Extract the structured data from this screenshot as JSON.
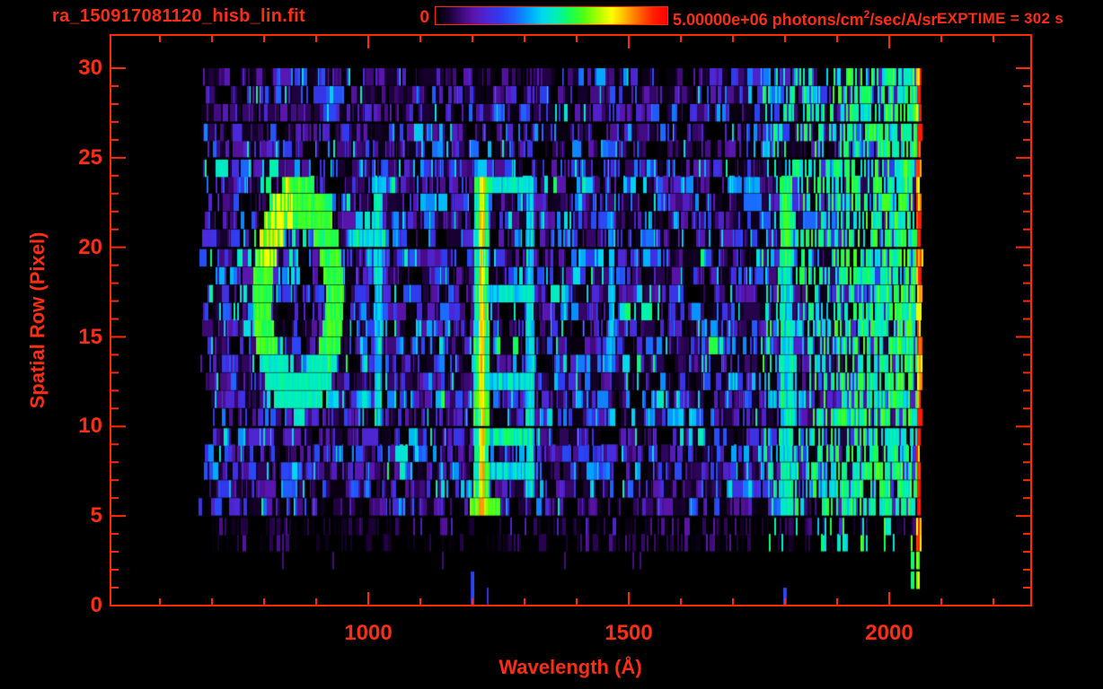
{
  "header": {
    "filename": "ra_150917081120_hisb_lin.fit",
    "colorbar_min": "0",
    "colorbar_max_prefix": "5.00000e+06 photons/cm",
    "colorbar_max_sup": "2",
    "colorbar_max_suffix": "/sec/A/sr",
    "exptime": "EXPTIME = 302 s"
  },
  "colors": {
    "background": "#000000",
    "axis": "#ff2b00",
    "text": "#fa2d15"
  },
  "chart_data": {
    "type": "heatmap",
    "title": "ra_150917081120_hisb_lin.fit",
    "xlabel": "Wavelength (Å)",
    "ylabel": "Spatial Row (Pixel)",
    "x_major_ticks": [
      1000,
      1500,
      2000
    ],
    "x_minor_ticks": [
      600,
      700,
      800,
      900,
      1100,
      1200,
      1300,
      1400,
      1600,
      1700,
      1800,
      1900,
      2100,
      2200
    ],
    "y_major_ticks": [
      0,
      5,
      10,
      15,
      20,
      25,
      30
    ],
    "y_minor_step": 1,
    "x_axis_range": [
      505,
      2270
    ],
    "y_axis_range": [
      0,
      30
    ],
    "colorbar_range": [
      0,
      5000000
    ],
    "colorbar_units": "photons/cm2/sec/A/sr",
    "exposure_time_s": 302,
    "data_lambda_range": [
      672,
      2065
    ],
    "data_rows": 30,
    "noise_seed": 20150917,
    "row_brightness": [
      0.0,
      0.0,
      0.02,
      0.3,
      0.45,
      0.75,
      0.95,
      0.95,
      0.95,
      0.95,
      0.95,
      1.05,
      1.05,
      1.05,
      1.05,
      1.05,
      1.05,
      1.05,
      1.05,
      1.05,
      1.05,
      1.05,
      1.05,
      1.05,
      1.0,
      0.8,
      0.8,
      0.8,
      0.8,
      0.75
    ],
    "colormap": [
      [
        0.0,
        "#000000"
      ],
      [
        0.05,
        "#16002e"
      ],
      [
        0.1,
        "#38086e"
      ],
      [
        0.16,
        "#5a14aa"
      ],
      [
        0.22,
        "#4b28d8"
      ],
      [
        0.28,
        "#2e3cf0"
      ],
      [
        0.34,
        "#1e64ff"
      ],
      [
        0.4,
        "#00a0ff"
      ],
      [
        0.46,
        "#00d8f0"
      ],
      [
        0.52,
        "#00f0b8"
      ],
      [
        0.58,
        "#14ff55"
      ],
      [
        0.64,
        "#50ff14"
      ],
      [
        0.7,
        "#a8ff00"
      ],
      [
        0.76,
        "#ffff00"
      ],
      [
        0.82,
        "#ffb400"
      ],
      [
        0.88,
        "#ff6400"
      ],
      [
        0.94,
        "#ff2000"
      ],
      [
        1.0,
        "#ff0000"
      ]
    ],
    "features": [
      {
        "type": "ring",
        "name": "ring-emission-feature",
        "lambda_center": 864,
        "row_center": 17.2,
        "radius_lambda": 76,
        "radius_rows": 5.9,
        "thickness": 0.32,
        "value": 0.56,
        "hot_value": 0.74
      },
      {
        "type": "vline",
        "name": "line-1017",
        "lambda": 1017,
        "width": 16,
        "row_min": 10,
        "row_max": 23.6,
        "value": 0.47
      },
      {
        "type": "hbar",
        "name": "bar-1017-branch",
        "lambda_min": 962,
        "lambda_max": 1032,
        "row": 19.6,
        "value": 0.5
      },
      {
        "type": "vline",
        "name": "H-Lyman-alpha",
        "lambda": 1216,
        "width": 30,
        "core_width": 10,
        "row_min": 5,
        "row_max": 24,
        "value": 0.56,
        "core_value": 0.8
      },
      {
        "type": "vline",
        "name": "O-I-1304",
        "lambda": 1309,
        "width": 16,
        "row_min": 6,
        "row_max": 23.6,
        "value": 0.46
      },
      {
        "type": "hbar",
        "name": "bridge-1",
        "lambda_min": 1216,
        "lambda_max": 1314,
        "row": 23,
        "value": 0.5
      },
      {
        "type": "hbar",
        "name": "bridge-2",
        "lambda_min": 1216,
        "lambda_max": 1314,
        "row": 17,
        "value": 0.48
      },
      {
        "type": "hbar",
        "name": "bridge-3",
        "lambda_min": 1216,
        "lambda_max": 1314,
        "row": 12,
        "value": 0.48
      },
      {
        "type": "hbar",
        "name": "bridge-4",
        "lambda_min": 1216,
        "lambda_max": 1314,
        "row": 9,
        "value": 0.5
      },
      {
        "type": "hbar",
        "name": "bridge-5",
        "lambda_min": 1216,
        "lambda_max": 1314,
        "row": 7,
        "value": 0.46
      },
      {
        "type": "blob",
        "name": "lya-bright-foot",
        "lambda_min": 1192,
        "lambda_max": 1252,
        "row_min": 5,
        "row_max": 6,
        "value": 0.62
      },
      {
        "type": "vline",
        "name": "faint-line-1466",
        "lambda": 1466,
        "width": 12,
        "row_min": 13,
        "row_max": 22,
        "value": 0.4
      },
      {
        "type": "vline",
        "name": "line-1800",
        "lambda": 1801,
        "width": 24,
        "row_min": 5,
        "row_max": 23.6,
        "value": 0.48,
        "boost_above_row": 19,
        "boost": 0.08
      },
      {
        "type": "solar",
        "name": "solar-continuum",
        "lambda_min": 1755,
        "lambda_max": 2065,
        "base_chance": 0.16,
        "max_chance": 0.8,
        "value_min": 0.4,
        "value_max": 0.62
      },
      {
        "type": "vline",
        "name": "edge-line",
        "lambda": 2058,
        "width": 13,
        "row_min": 3,
        "row_max": 29.5,
        "value": 0.78,
        "jitter": 0.12
      },
      {
        "type": "red_segments",
        "name": "edge-hot-spots",
        "lambda": 2058,
        "width": 11,
        "rows": [
          27.5,
          21,
          10,
          5.7
        ],
        "value": 0.95
      },
      {
        "type": "spike",
        "name": "bottom-spike-lya",
        "lambda": 1198,
        "width": 5,
        "row_min": 0,
        "row_max": 2.2,
        "value": 0.3
      },
      {
        "type": "spike",
        "name": "bottom-spike-2",
        "lambda": 1227,
        "width": 3,
        "row_min": 0,
        "row_max": 1,
        "value": 0.26
      },
      {
        "type": "spike",
        "name": "bottom-spike-1800",
        "lambda": 1798,
        "width": 4,
        "row_min": 0,
        "row_max": 1.2,
        "value": 0.3
      },
      {
        "type": "spike",
        "name": "bottom-speck-2042",
        "lambda": 2042,
        "width": 5,
        "row_min": 1,
        "row_max": 2.6,
        "value": 0.55
      },
      {
        "type": "spike",
        "name": "bottom-speck-2053",
        "lambda": 2053,
        "width": 5,
        "row_min": 1,
        "row_max": 3,
        "value": 0.68
      }
    ]
  }
}
